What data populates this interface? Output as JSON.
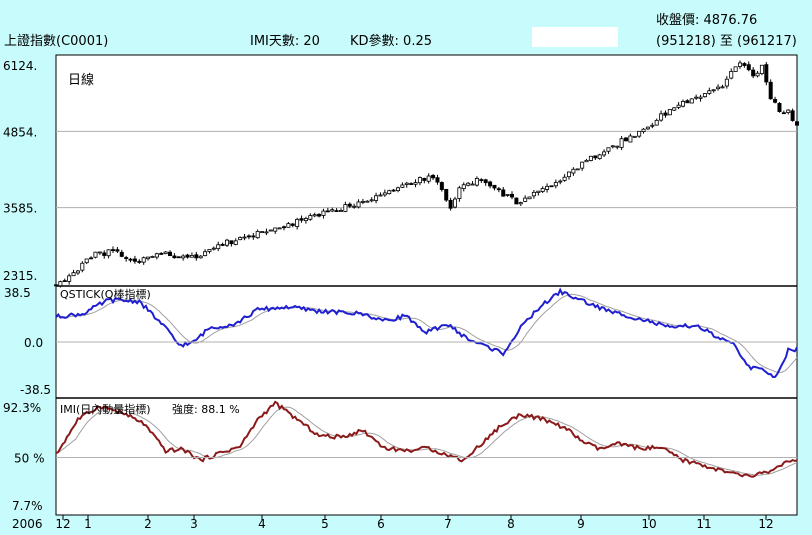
{
  "header": {
    "index_label": "上證指數(C0001)",
    "imi_days_label": "IMI天數: 20",
    "kd_param_label": "KD參數: 0.25",
    "close_price_label": "收盤價: 4876.76",
    "date_range_label": "(951218) 至 (961217)"
  },
  "colors": {
    "background": "#c8fcfc",
    "plot_bg": "#ffffff",
    "candle": "#000000",
    "qstick_line": "#2020d0",
    "imi_line": "#8b1a1a",
    "smooth_line": "#a0a0a0",
    "grid": "#b0b0b0"
  },
  "chart_data": [
    {
      "type": "candlestick",
      "title": "日線",
      "y_ticks": [
        "6124.",
        "4854.",
        "3585.",
        "2315."
      ],
      "ylim": [
        2315,
        6124
      ],
      "x_ticks": [
        "12",
        "1",
        "2",
        "3",
        "4",
        "5",
        "6",
        "7",
        "8",
        "9",
        "10",
        "11",
        "12"
      ],
      "year_label": "2006",
      "close_path": {
        "x": [
          0,
          5,
          12,
          18,
          26,
          36,
          48,
          62,
          76,
          92,
          110,
          128,
          146,
          160,
          172,
          180,
          184,
          192,
          200,
          210,
          222,
          232,
          242,
          252,
          262,
          270,
          276,
          282,
          290,
          296,
          304,
          312,
          318,
          322,
          326,
          331,
          334,
          338
        ],
        "y": [
          2320,
          2390,
          2650,
          2800,
          2860,
          2680,
          2820,
          2750,
          2980,
          3150,
          3350,
          3550,
          3780,
          3990,
          4110,
          3600,
          3900,
          4060,
          3900,
          3680,
          3860,
          4100,
          4350,
          4580,
          4760,
          4930,
          5120,
          5250,
          5380,
          5480,
          5600,
          6020,
          5750,
          5960,
          5420,
          5150,
          5180,
          4960
        ]
      }
    },
    {
      "type": "line",
      "title": "QSTICK(Q棒指標)",
      "y_ticks": [
        "38.5",
        "0.0",
        "-38.5"
      ],
      "ylim": [
        -38.5,
        38.5
      ],
      "series": [
        {
          "x": [
            0,
            12,
            24,
            38,
            50,
            56,
            62,
            70,
            82,
            92,
            106,
            120,
            140,
            150,
            160,
            168,
            178,
            188,
            196,
            204,
            212,
            220,
            230,
            236,
            244,
            252,
            260,
            270,
            280,
            292,
            302,
            310,
            316,
            322,
            328,
            334,
            338
          ],
          "values": [
            18,
            20,
            30,
            29,
            10,
            -2,
            -1,
            10,
            13,
            23,
            25,
            22,
            20,
            15,
            19,
            6,
            13,
            2,
            -3,
            -8,
            10,
            24,
            36,
            32,
            27,
            22,
            19,
            15,
            10,
            12,
            3,
            -3,
            -18,
            -20,
            -25,
            -6,
            -5
          ]
        }
      ]
    },
    {
      "type": "line",
      "title": "IMI(日內動量指標)",
      "subtitle": "強度: 88.1 %",
      "y_ticks": [
        "92.3%",
        "50 %",
        "7.7%"
      ],
      "ylim": [
        7.7,
        92.3
      ],
      "series": [
        {
          "x": [
            0,
            10,
            20,
            30,
            40,
            50,
            58,
            66,
            76,
            84,
            92,
            100,
            110,
            120,
            130,
            140,
            150,
            160,
            170,
            178,
            186,
            194,
            202,
            212,
            222,
            232,
            240,
            248,
            256,
            266,
            276,
            286,
            296,
            306,
            316,
            326,
            332,
            338
          ],
          "values": [
            52,
            78,
            88,
            83,
            75,
            55,
            56,
            48,
            54,
            58,
            78,
            90,
            78,
            66,
            65,
            70,
            57,
            55,
            57,
            52,
            48,
            60,
            72,
            82,
            78,
            72,
            62,
            56,
            60,
            57,
            57,
            48,
            44,
            39,
            36,
            40,
            46,
            47
          ]
        }
      ]
    }
  ]
}
